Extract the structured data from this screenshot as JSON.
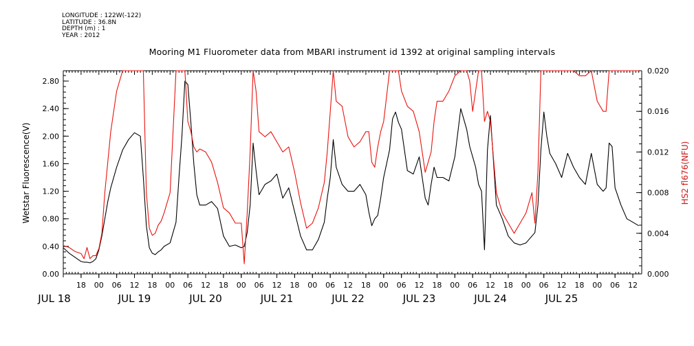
{
  "header": {
    "lines": [
      "LONGITUDE : 122W(-122)",
      "LATITUDE : 36.8N",
      "DEPTH (m) : 1",
      "YEAR : 2012"
    ]
  },
  "colors": {
    "left_series": "#000000",
    "right_series": "#e8120c",
    "right_axis": "#cc1a1a",
    "axes": "#000000"
  },
  "chart_data": {
    "type": "line",
    "title": "Mooring M1 Fluorometer data from MBARI instrument id 1392 at original sampling intervals",
    "ylabel": "Wetstar Fluorescence(V)",
    "ylabel_right": "HS2 fl676(NFU)",
    "ylim": [
      0,
      2.95
    ],
    "ylim_right": [
      0,
      0.02
    ],
    "yticks": [
      0.0,
      0.4,
      0.8,
      1.2,
      1.6,
      2.0,
      2.4,
      2.8
    ],
    "yticks_right": [
      0.0,
      0.004,
      0.008,
      0.012,
      0.016,
      0.02
    ],
    "ytick_labels": [
      "0.00",
      "0.40",
      "0.80",
      "1.20",
      "1.60",
      "2.00",
      "2.40",
      "2.80"
    ],
    "ytick_labels_right": [
      "0.000",
      "0.004",
      "0.008",
      "0.012",
      "0.016",
      "0.020"
    ],
    "xlim_hours": [
      12,
      207
    ],
    "x_hour_ticks": [
      {
        "h": 18,
        "label": "18"
      },
      {
        "h": 24,
        "label": "00"
      },
      {
        "h": 30,
        "label": "06"
      },
      {
        "h": 36,
        "label": "12"
      },
      {
        "h": 42,
        "label": "18"
      },
      {
        "h": 48,
        "label": "00"
      },
      {
        "h": 54,
        "label": "06"
      },
      {
        "h": 60,
        "label": "12"
      },
      {
        "h": 66,
        "label": "18"
      },
      {
        "h": 72,
        "label": "00"
      },
      {
        "h": 78,
        "label": "06"
      },
      {
        "h": 84,
        "label": "12"
      },
      {
        "h": 90,
        "label": "18"
      },
      {
        "h": 96,
        "label": "00"
      },
      {
        "h": 102,
        "label": "06"
      },
      {
        "h": 108,
        "label": "12"
      },
      {
        "h": 114,
        "label": "18"
      },
      {
        "h": 120,
        "label": "00"
      },
      {
        "h": 126,
        "label": "06"
      },
      {
        "h": 132,
        "label": "12"
      },
      {
        "h": 138,
        "label": "18"
      },
      {
        "h": 144,
        "label": "00"
      },
      {
        "h": 150,
        "label": "06"
      },
      {
        "h": 156,
        "label": "12"
      },
      {
        "h": 162,
        "label": "18"
      },
      {
        "h": 168,
        "label": "00"
      },
      {
        "h": 174,
        "label": "06"
      },
      {
        "h": 180,
        "label": "12"
      },
      {
        "h": 186,
        "label": "18"
      },
      {
        "h": 192,
        "label": "00"
      },
      {
        "h": 198,
        "label": "06"
      },
      {
        "h": 204,
        "label": "12"
      }
    ],
    "x_date_labels": [
      {
        "h": 12,
        "label": "JUL 18"
      },
      {
        "h": 36,
        "label": "JUL 19"
      },
      {
        "h": 60,
        "label": "JUL 20"
      },
      {
        "h": 84,
        "label": "JUL 21"
      },
      {
        "h": 108,
        "label": "JUL 22"
      },
      {
        "h": 132,
        "label": "JUL 23"
      },
      {
        "h": 156,
        "label": "JUL 24"
      },
      {
        "h": 180,
        "label": "JUL 25"
      }
    ],
    "x_units": "hours after 2012-07-18 00:00",
    "series": [
      {
        "axis": "left",
        "x": [
          12,
          14,
          16,
          18,
          19,
          20,
          21,
          22,
          23,
          24,
          25,
          26,
          27,
          28,
          30,
          32,
          34,
          36,
          38,
          39,
          40,
          41,
          42,
          43,
          44,
          45,
          46,
          48,
          50,
          51,
          52,
          53,
          54,
          55,
          56,
          57,
          58,
          60,
          62,
          64,
          66,
          68,
          70,
          72,
          73,
          74,
          75,
          76,
          77,
          78,
          80,
          82,
          84,
          86,
          88,
          90,
          92,
          94,
          96,
          98,
          100,
          101,
          102,
          103,
          104,
          106,
          108,
          110,
          112,
          114,
          115,
          116,
          117,
          118,
          119,
          120,
          122,
          123,
          124,
          125,
          126,
          128,
          130,
          132,
          134,
          135,
          136,
          137,
          138,
          140,
          142,
          144,
          146,
          148,
          149,
          150,
          151,
          152,
          153,
          154,
          155,
          156,
          158,
          160,
          162,
          164,
          166,
          168,
          170,
          171,
          172,
          173,
          174,
          175,
          176,
          178,
          180,
          182,
          184,
          186,
          188,
          190,
          192,
          194,
          195,
          196,
          197,
          198,
          200,
          202,
          204,
          206
        ],
        "values": [
          0.38,
          0.3,
          0.24,
          0.18,
          0.17,
          0.17,
          0.16,
          0.18,
          0.22,
          0.35,
          0.55,
          0.8,
          1.05,
          1.25,
          1.55,
          1.8,
          1.95,
          2.05,
          2.0,
          1.4,
          0.7,
          0.38,
          0.3,
          0.28,
          0.32,
          0.35,
          0.4,
          0.45,
          0.75,
          1.4,
          2.0,
          2.8,
          2.75,
          2.2,
          1.6,
          1.15,
          1.0,
          1.0,
          1.05,
          0.95,
          0.55,
          0.4,
          0.42,
          0.38,
          0.4,
          0.6,
          1.0,
          1.9,
          1.5,
          1.15,
          1.3,
          1.35,
          1.45,
          1.1,
          1.25,
          0.9,
          0.55,
          0.35,
          0.35,
          0.5,
          0.75,
          1.1,
          1.4,
          1.95,
          1.55,
          1.3,
          1.2,
          1.2,
          1.3,
          1.15,
          0.9,
          0.7,
          0.8,
          0.85,
          1.1,
          1.4,
          1.8,
          2.25,
          2.35,
          2.2,
          2.1,
          1.5,
          1.45,
          1.7,
          1.1,
          1.0,
          1.3,
          1.55,
          1.4,
          1.4,
          1.35,
          1.7,
          2.4,
          2.1,
          1.85,
          1.7,
          1.55,
          1.3,
          1.2,
          0.35,
          1.8,
          2.3,
          1.0,
          0.8,
          0.55,
          0.45,
          0.42,
          0.45,
          0.55,
          0.6,
          1.0,
          1.8,
          2.35,
          2.0,
          1.75,
          1.6,
          1.4,
          1.75,
          1.55,
          1.4,
          1.3,
          1.75,
          1.3,
          1.2,
          1.25,
          1.9,
          1.85,
          1.25,
          1.0,
          0.8,
          0.75,
          0.7
        ]
      },
      {
        "axis": "right",
        "x": [
          12,
          14,
          16,
          18,
          19,
          20,
          21,
          22,
          23,
          24,
          25,
          26,
          27,
          28,
          30,
          32,
          34,
          36,
          38,
          39,
          40,
          41,
          42,
          43,
          44,
          45,
          46,
          48,
          50,
          51,
          52,
          53,
          54,
          55,
          56,
          57,
          58,
          60,
          62,
          64,
          66,
          68,
          70,
          72,
          73,
          74,
          75,
          76,
          77,
          78,
          80,
          82,
          84,
          86,
          88,
          90,
          92,
          94,
          96,
          98,
          100,
          101,
          102,
          103,
          104,
          106,
          108,
          110,
          112,
          114,
          115,
          116,
          117,
          118,
          119,
          120,
          122,
          123,
          124,
          125,
          126,
          128,
          130,
          132,
          134,
          135,
          136,
          137,
          138,
          140,
          142,
          144,
          146,
          148,
          149,
          150,
          151,
          152,
          153,
          154,
          155,
          156,
          158,
          160,
          162,
          164,
          166,
          168,
          170,
          171,
          172,
          173,
          174,
          175,
          176,
          178,
          180,
          182,
          184,
          186,
          188,
          190,
          192,
          194,
          195,
          196,
          197,
          198,
          200,
          202,
          204,
          206
        ],
        "values": [
          0.0028,
          0.0026,
          0.0022,
          0.002,
          0.0015,
          0.0026,
          0.0015,
          0.0018,
          0.0018,
          0.0025,
          0.004,
          0.008,
          0.011,
          0.014,
          0.018,
          0.02,
          0.02,
          0.02,
          0.02,
          0.02,
          0.008,
          0.0045,
          0.0038,
          0.004,
          0.0048,
          0.0052,
          0.006,
          0.008,
          0.02,
          0.02,
          0.02,
          0.02,
          0.015,
          0.014,
          0.0125,
          0.012,
          0.0123,
          0.012,
          0.011,
          0.009,
          0.0065,
          0.006,
          0.005,
          0.005,
          0.001,
          0.006,
          0.012,
          0.02,
          0.018,
          0.014,
          0.0135,
          0.014,
          0.013,
          0.012,
          0.0125,
          0.01,
          0.007,
          0.0045,
          0.005,
          0.0065,
          0.009,
          0.012,
          0.016,
          0.02,
          0.017,
          0.0165,
          0.0135,
          0.0125,
          0.013,
          0.014,
          0.014,
          0.011,
          0.0105,
          0.0125,
          0.014,
          0.015,
          0.02,
          0.02,
          0.02,
          0.02,
          0.018,
          0.0165,
          0.016,
          0.014,
          0.01,
          0.011,
          0.012,
          0.015,
          0.017,
          0.017,
          0.018,
          0.0195,
          0.02,
          0.02,
          0.019,
          0.016,
          0.018,
          0.02,
          0.02,
          0.015,
          0.016,
          0.015,
          0.008,
          0.006,
          0.005,
          0.004,
          0.005,
          0.006,
          0.008,
          0.005,
          0.01,
          0.02,
          0.02,
          0.02,
          0.02,
          0.02,
          0.02,
          0.02,
          0.02,
          0.0195,
          0.0195,
          0.02,
          0.017,
          0.016,
          0.016,
          0.02,
          0.02,
          0.02,
          0.02,
          0.02,
          0.02,
          0.02
        ]
      }
    ],
    "grid": false,
    "legend": "none"
  }
}
